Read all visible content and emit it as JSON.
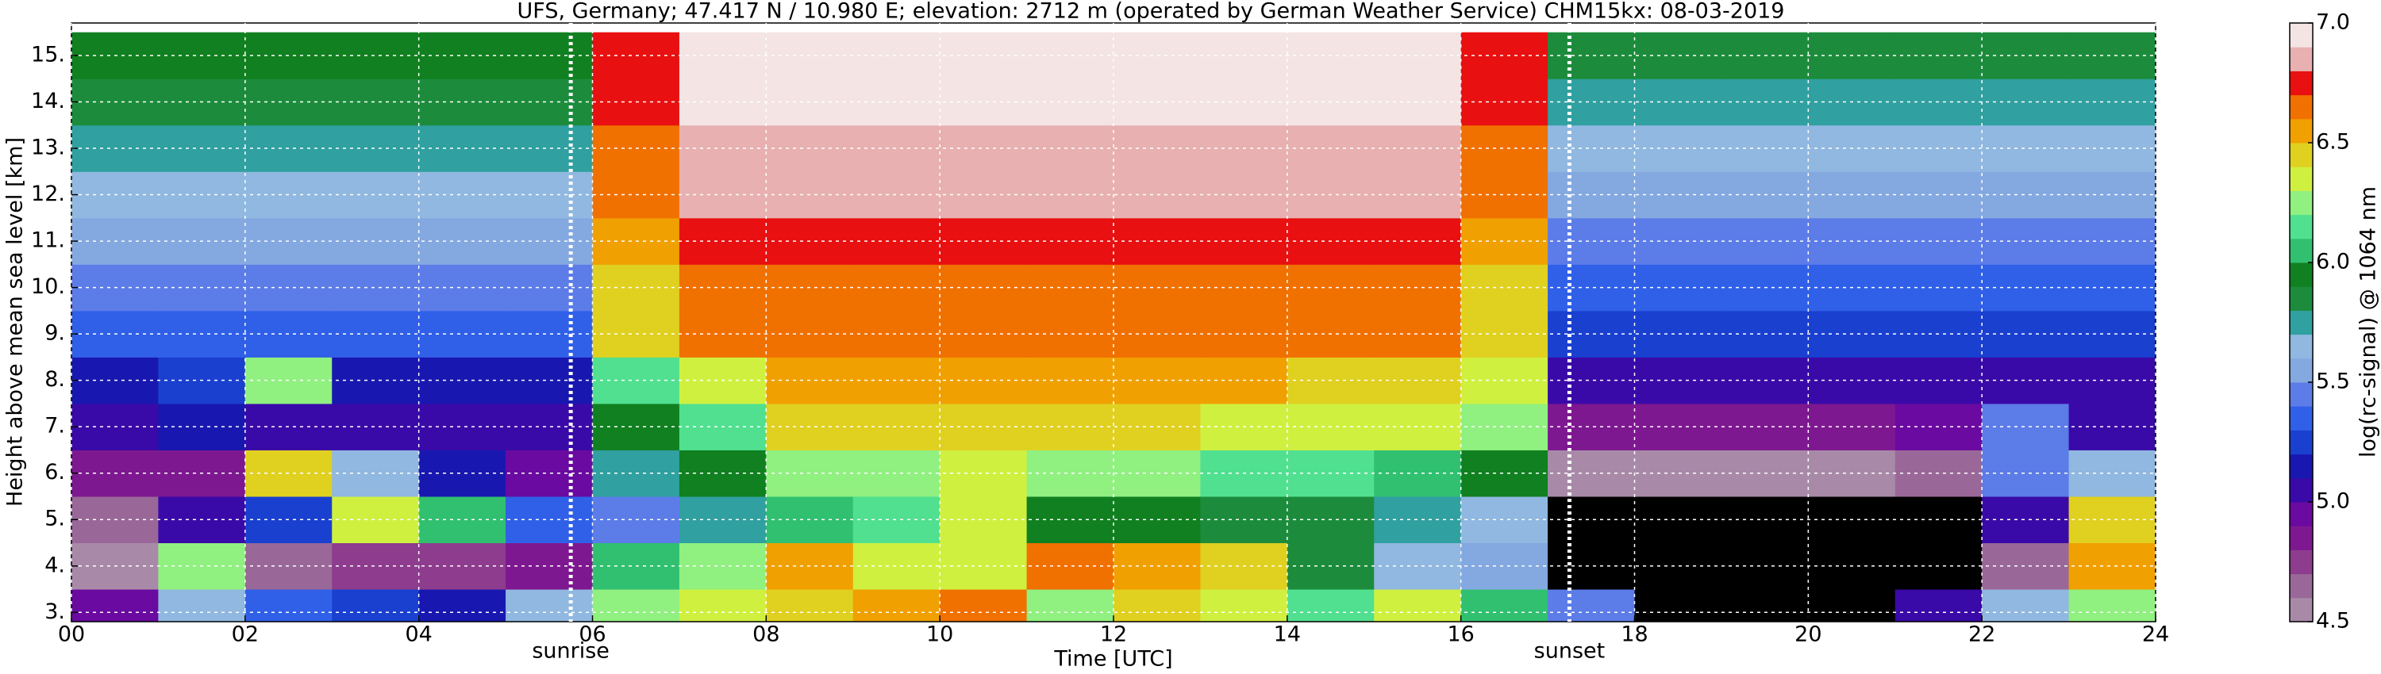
{
  "chart_data": {
    "type": "heatmap",
    "title": "UFS, Germany; 47.417 N / 10.980 E; elevation: 2712 m  (operated by German Weather Service)    CHM15kx: 08-03-2019",
    "xlabel": "Time [UTC]",
    "ylabel": "Height above mean sea level [km]",
    "colorbar_label": "log(rc-signal) @ 1064 nm",
    "x": [
      0.5,
      1.5,
      2.5,
      3.5,
      4.5,
      5.5,
      6.5,
      7.5,
      8.5,
      9.5,
      10.5,
      11.5,
      12.5,
      13.5,
      14.5,
      15.5,
      16.5,
      17.5,
      18.5,
      19.5,
      20.5,
      21.5,
      22.5,
      23.5
    ],
    "y": [
      3,
      4,
      5,
      6,
      7,
      8,
      9,
      10,
      11,
      12,
      13,
      14,
      15
    ],
    "z": [
      [
        4.9,
        5.6,
        5.3,
        5.2,
        5.1,
        5.6,
        6.2,
        6.3,
        6.4,
        6.5,
        6.6,
        6.2,
        6.4,
        6.3,
        6.1,
        6.3,
        6.0,
        5.4,
        4.3,
        4.3,
        4.3,
        5.0,
        5.6,
        6.2
      ],
      [
        4.5,
        6.2,
        4.6,
        4.7,
        4.7,
        4.8,
        6.0,
        6.2,
        6.5,
        6.3,
        6.3,
        6.6,
        6.5,
        6.4,
        5.8,
        5.6,
        5.5,
        4.4,
        4.3,
        4.3,
        4.3,
        4.3,
        4.6,
        6.5
      ],
      [
        4.6,
        5.0,
        5.2,
        6.3,
        6.0,
        5.3,
        5.4,
        5.7,
        6.0,
        6.1,
        6.3,
        5.9,
        5.9,
        5.8,
        5.8,
        5.7,
        5.6,
        4.4,
        4.3,
        4.3,
        4.3,
        4.4,
        5.0,
        6.4
      ],
      [
        4.8,
        4.8,
        6.4,
        5.6,
        5.1,
        4.9,
        5.7,
        5.9,
        6.2,
        6.2,
        6.3,
        6.2,
        6.2,
        6.1,
        6.1,
        6.0,
        5.9,
        4.5,
        4.5,
        4.5,
        4.5,
        4.6,
        5.4,
        5.6
      ],
      [
        5.0,
        5.1,
        5.0,
        5.0,
        5.0,
        5.0,
        5.9,
        6.1,
        6.4,
        6.4,
        6.4,
        6.4,
        6.4,
        6.3,
        6.3,
        6.3,
        6.2,
        4.8,
        4.8,
        4.8,
        4.8,
        4.9,
        5.4,
        5.0
      ],
      [
        5.1,
        5.2,
        6.2,
        5.1,
        5.1,
        5.1,
        6.1,
        6.3,
        6.5,
        6.5,
        6.5,
        6.5,
        6.5,
        6.5,
        6.4,
        6.4,
        6.3,
        5.0,
        5.0,
        5.0,
        5.0,
        5.0,
        5.0,
        5.0
      ],
      [
        5.3,
        5.3,
        5.3,
        5.3,
        5.3,
        5.3,
        6.4,
        6.6,
        6.6,
        6.6,
        6.6,
        6.6,
        6.6,
        6.6,
        6.6,
        6.6,
        6.4,
        5.2,
        5.2,
        5.2,
        5.2,
        5.2,
        5.2,
        5.2
      ],
      [
        5.4,
        5.4,
        5.4,
        5.4,
        5.4,
        5.4,
        6.4,
        6.6,
        6.6,
        6.6,
        6.6,
        6.6,
        6.6,
        6.6,
        6.6,
        6.6,
        6.4,
        5.3,
        5.3,
        5.3,
        5.3,
        5.3,
        5.3,
        5.3
      ],
      [
        5.5,
        5.5,
        5.5,
        5.5,
        5.5,
        5.5,
        6.5,
        6.7,
        6.7,
        6.7,
        6.7,
        6.7,
        6.7,
        6.7,
        6.7,
        6.7,
        6.5,
        5.4,
        5.4,
        5.4,
        5.4,
        5.4,
        5.4,
        5.4
      ],
      [
        5.6,
        5.6,
        5.6,
        5.6,
        5.6,
        5.6,
        6.6,
        6.8,
        6.8,
        6.8,
        6.8,
        6.8,
        6.8,
        6.8,
        6.8,
        6.8,
        6.6,
        5.5,
        5.5,
        5.5,
        5.5,
        5.5,
        5.5,
        5.5
      ],
      [
        5.7,
        5.7,
        5.7,
        5.7,
        5.7,
        5.7,
        6.6,
        6.8,
        6.8,
        6.8,
        6.8,
        6.8,
        6.8,
        6.8,
        6.8,
        6.8,
        6.6,
        5.6,
        5.6,
        5.6,
        5.6,
        5.6,
        5.6,
        5.6
      ],
      [
        5.8,
        5.8,
        5.8,
        5.8,
        5.8,
        5.8,
        6.7,
        6.9,
        6.9,
        6.9,
        6.9,
        6.9,
        6.9,
        6.9,
        6.9,
        6.9,
        6.7,
        5.7,
        5.7,
        5.7,
        5.7,
        5.7,
        5.7,
        5.7
      ],
      [
        5.9,
        5.9,
        5.9,
        5.9,
        5.9,
        5.9,
        6.7,
        6.9,
        6.9,
        6.9,
        6.9,
        6.9,
        6.9,
        6.9,
        6.9,
        6.9,
        6.7,
        5.8,
        5.8,
        5.8,
        5.8,
        5.8,
        5.8,
        5.8
      ]
    ],
    "xlim": [
      0,
      24
    ],
    "ylim": [
      2.8,
      15.7
    ],
    "xticks": [
      {
        "value": 0,
        "label": "00"
      },
      {
        "value": 2,
        "label": "02"
      },
      {
        "value": 4,
        "label": "04"
      },
      {
        "value": 6,
        "label": "06"
      },
      {
        "value": 8,
        "label": "08"
      },
      10,
      12,
      14,
      16,
      18,
      20,
      22,
      24
    ],
    "yticks": [
      {
        "value": 3,
        "label": "3."
      },
      {
        "value": 4,
        "label": "4."
      },
      {
        "value": 5,
        "label": "5."
      },
      {
        "value": 6,
        "label": "6."
      },
      {
        "value": 7,
        "label": "7."
      },
      {
        "value": 8,
        "label": "8."
      },
      {
        "value": 9,
        "label": "9."
      },
      {
        "value": 10,
        "label": "10."
      },
      {
        "value": 11,
        "label": "11."
      },
      {
        "value": 12,
        "label": "12."
      },
      {
        "value": 13,
        "label": "13."
      },
      {
        "value": 14,
        "label": "14."
      },
      {
        "value": 15,
        "label": "15."
      }
    ],
    "clim": [
      4.5,
      7.0
    ],
    "cticks": [
      4.5,
      {
        "value": 5,
        "label": "5.0"
      },
      5.5,
      {
        "value": 6,
        "label": "6.0"
      },
      6.5,
      {
        "value": 7,
        "label": "7.0"
      }
    ],
    "colormap": [
      "#a88aa8",
      "#9a6898",
      "#8e3c8e",
      "#7e1890",
      "#6a0aa0",
      "#3a0aa8",
      "#1818b0",
      "#1a40d0",
      "#3060e8",
      "#5c7ce8",
      "#84a8e0",
      "#90b8e0",
      "#30a0a0",
      "#1c8c3c",
      "#108020",
      "#30c070",
      "#50e090",
      "#90f080",
      "#d0f040",
      "#e0d020",
      "#f0a000",
      "#f07000",
      "#e81010",
      "#e8b0b0",
      "#f4e4e4"
    ],
    "under_color": "#000000",
    "grid": true,
    "annotations": [
      {
        "text": "sunrise",
        "x": 5.75
      },
      {
        "text": "sunset",
        "x": 17.25
      }
    ]
  }
}
